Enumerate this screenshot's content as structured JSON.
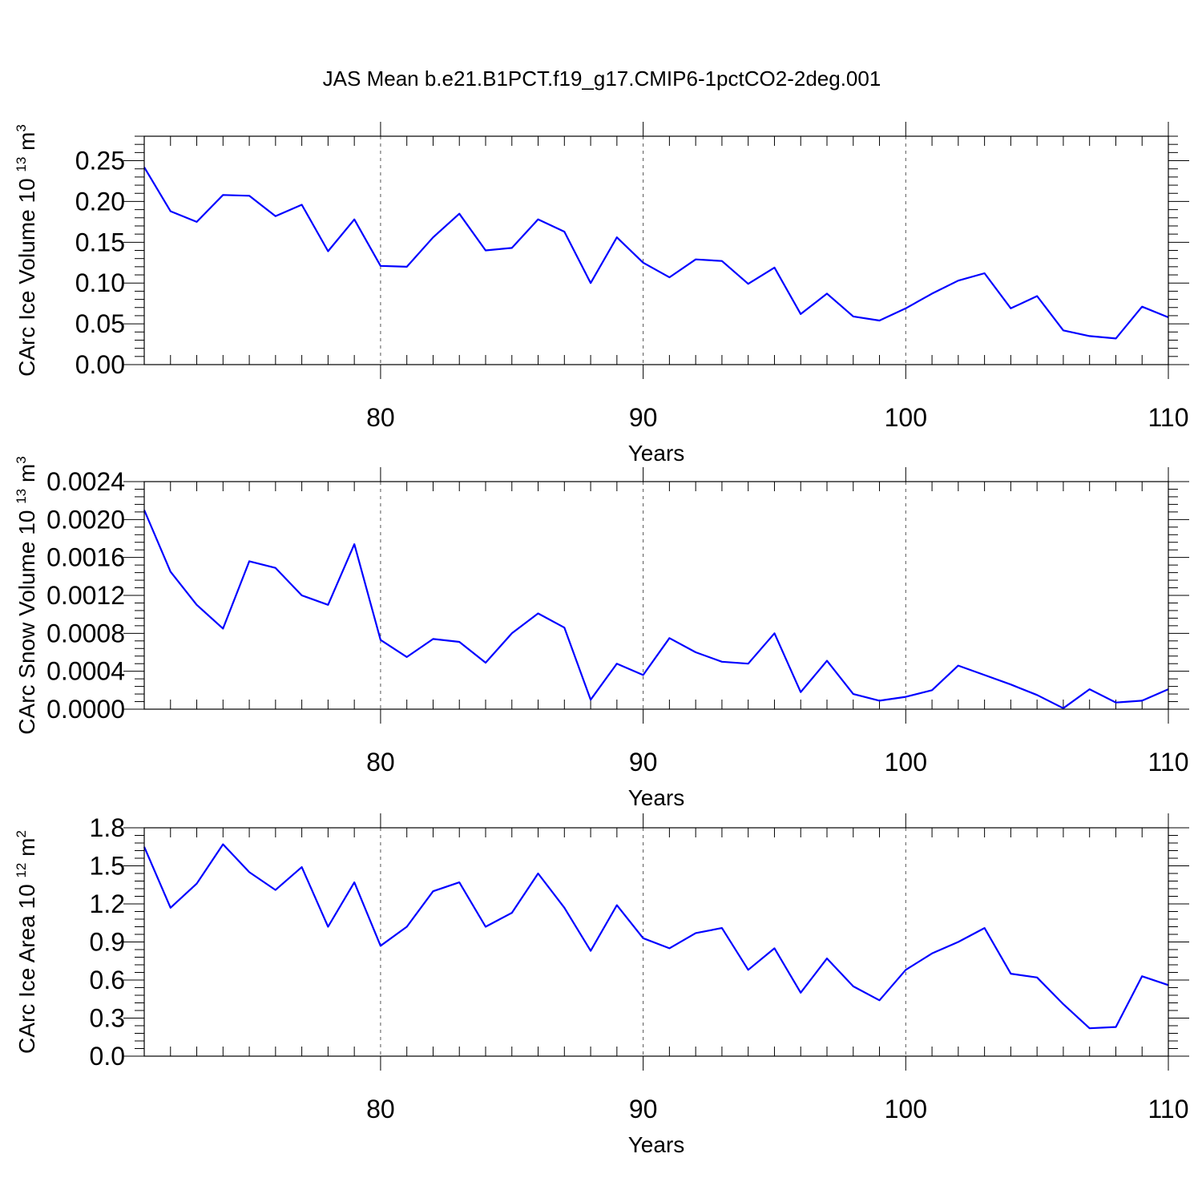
{
  "figure": {
    "title": "JAS Mean b.e21.B1PCT.f19_g17.CMIP6-1pctCO2-2deg.001"
  },
  "chart_data": [
    {
      "type": "line",
      "xlabel": "Years",
      "ylabel": "CArc Ice Volume 10",
      "ylabel_exponent": "13",
      "ylabel_unit": "m",
      "ylabel_unit_exponent": "3",
      "xlim": [
        71,
        110
      ],
      "ylim": [
        0,
        0.28
      ],
      "xticks": [
        80,
        90,
        100,
        110
      ],
      "xtick_labels": [
        "80",
        "90",
        "100",
        "110"
      ],
      "yticks": [
        0,
        0.05,
        0.1,
        0.15,
        0.2,
        0.25
      ],
      "ytick_labels": [
        "0.00",
        "0.05",
        "0.10",
        "0.15",
        "0.20",
        "0.25"
      ],
      "grid": "dashed vertical at major x ticks",
      "line_color": "#0000ff",
      "x": [
        71,
        72,
        73,
        74,
        75,
        76,
        77,
        78,
        79,
        80,
        81,
        82,
        83,
        84,
        85,
        86,
        87,
        88,
        89,
        90,
        91,
        92,
        93,
        94,
        95,
        96,
        97,
        98,
        99,
        100,
        101,
        102,
        103,
        104,
        105,
        106,
        107,
        108,
        109,
        110
      ],
      "y": [
        0.242,
        0.188,
        0.175,
        0.208,
        0.207,
        0.182,
        0.196,
        0.139,
        0.178,
        0.121,
        0.12,
        0.156,
        0.185,
        0.14,
        0.143,
        0.178,
        0.163,
        0.1,
        0.156,
        0.125,
        0.107,
        0.129,
        0.127,
        0.099,
        0.119,
        0.062,
        0.087,
        0.059,
        0.054,
        0.069,
        0.087,
        0.103,
        0.112,
        0.069,
        0.084,
        0.042,
        0.035,
        0.032,
        0.071,
        0.058
      ]
    },
    {
      "type": "line",
      "xlabel": "Years",
      "ylabel": "CArc Snow Volume 10",
      "ylabel_exponent": "13",
      "ylabel_unit": "m",
      "ylabel_unit_exponent": "3",
      "xlim": [
        71,
        110
      ],
      "ylim": [
        0,
        0.0024
      ],
      "xticks": [
        80,
        90,
        100,
        110
      ],
      "xtick_labels": [
        "80",
        "90",
        "100",
        "110"
      ],
      "yticks": [
        0,
        0.0004,
        0.0008,
        0.0012,
        0.0016,
        0.002,
        0.0024
      ],
      "ytick_labels": [
        "0.0000",
        "0.0004",
        "0.0008",
        "0.0012",
        "0.0016",
        "0.0020",
        "0.0024"
      ],
      "grid": "dashed vertical at major x ticks",
      "line_color": "#0000ff",
      "x": [
        71,
        72,
        73,
        74,
        75,
        76,
        77,
        78,
        79,
        80,
        81,
        82,
        83,
        84,
        85,
        86,
        87,
        88,
        89,
        90,
        91,
        92,
        93,
        94,
        95,
        96,
        97,
        98,
        99,
        100,
        101,
        102,
        103,
        104,
        105,
        106,
        107,
        108,
        109,
        110
      ],
      "y": [
        0.0021,
        0.00145,
        0.0011,
        0.00085,
        0.00156,
        0.00149,
        0.0012,
        0.0011,
        0.00174,
        0.00073,
        0.00055,
        0.00074,
        0.00071,
        0.00049,
        0.0008,
        0.00101,
        0.00086,
        0.0001,
        0.00048,
        0.00036,
        0.00075,
        0.0006,
        0.0005,
        0.00048,
        0.0008,
        0.00018,
        0.00051,
        0.00016,
        9e-05,
        0.00013,
        0.0002,
        0.00046,
        0.00036,
        0.00026,
        0.00015,
        1e-05,
        0.00021,
        7e-05,
        9e-05,
        0.00021
      ]
    },
    {
      "type": "line",
      "xlabel": "Years",
      "ylabel": "CArc Ice Area 10",
      "ylabel_exponent": "12",
      "ylabel_unit": "m",
      "ylabel_unit_exponent": "2",
      "xlim": [
        71,
        110
      ],
      "ylim": [
        0,
        1.8
      ],
      "xticks": [
        80,
        90,
        100,
        110
      ],
      "xtick_labels": [
        "80",
        "90",
        "100",
        "110"
      ],
      "yticks": [
        0,
        0.3,
        0.6,
        0.9,
        1.2,
        1.5,
        1.8
      ],
      "ytick_labels": [
        "0.0",
        "0.3",
        "0.6",
        "0.9",
        "1.2",
        "1.5",
        "1.8"
      ],
      "grid": "dashed vertical at major x ticks",
      "line_color": "#0000ff",
      "x": [
        71,
        72,
        73,
        74,
        75,
        76,
        77,
        78,
        79,
        80,
        81,
        82,
        83,
        84,
        85,
        86,
        87,
        88,
        89,
        90,
        91,
        92,
        93,
        94,
        95,
        96,
        97,
        98,
        99,
        100,
        101,
        102,
        103,
        104,
        105,
        106,
        107,
        108,
        109,
        110
      ],
      "y": [
        1.65,
        1.17,
        1.36,
        1.67,
        1.45,
        1.31,
        1.49,
        1.02,
        1.37,
        0.87,
        1.02,
        1.3,
        1.37,
        1.02,
        1.13,
        1.44,
        1.17,
        0.83,
        1.19,
        0.93,
        0.85,
        0.97,
        1.01,
        0.68,
        0.85,
        0.5,
        0.77,
        0.55,
        0.44,
        0.68,
        0.81,
        0.9,
        1.01,
        0.65,
        0.62,
        0.41,
        0.22,
        0.23,
        0.63,
        0.56
      ]
    }
  ]
}
